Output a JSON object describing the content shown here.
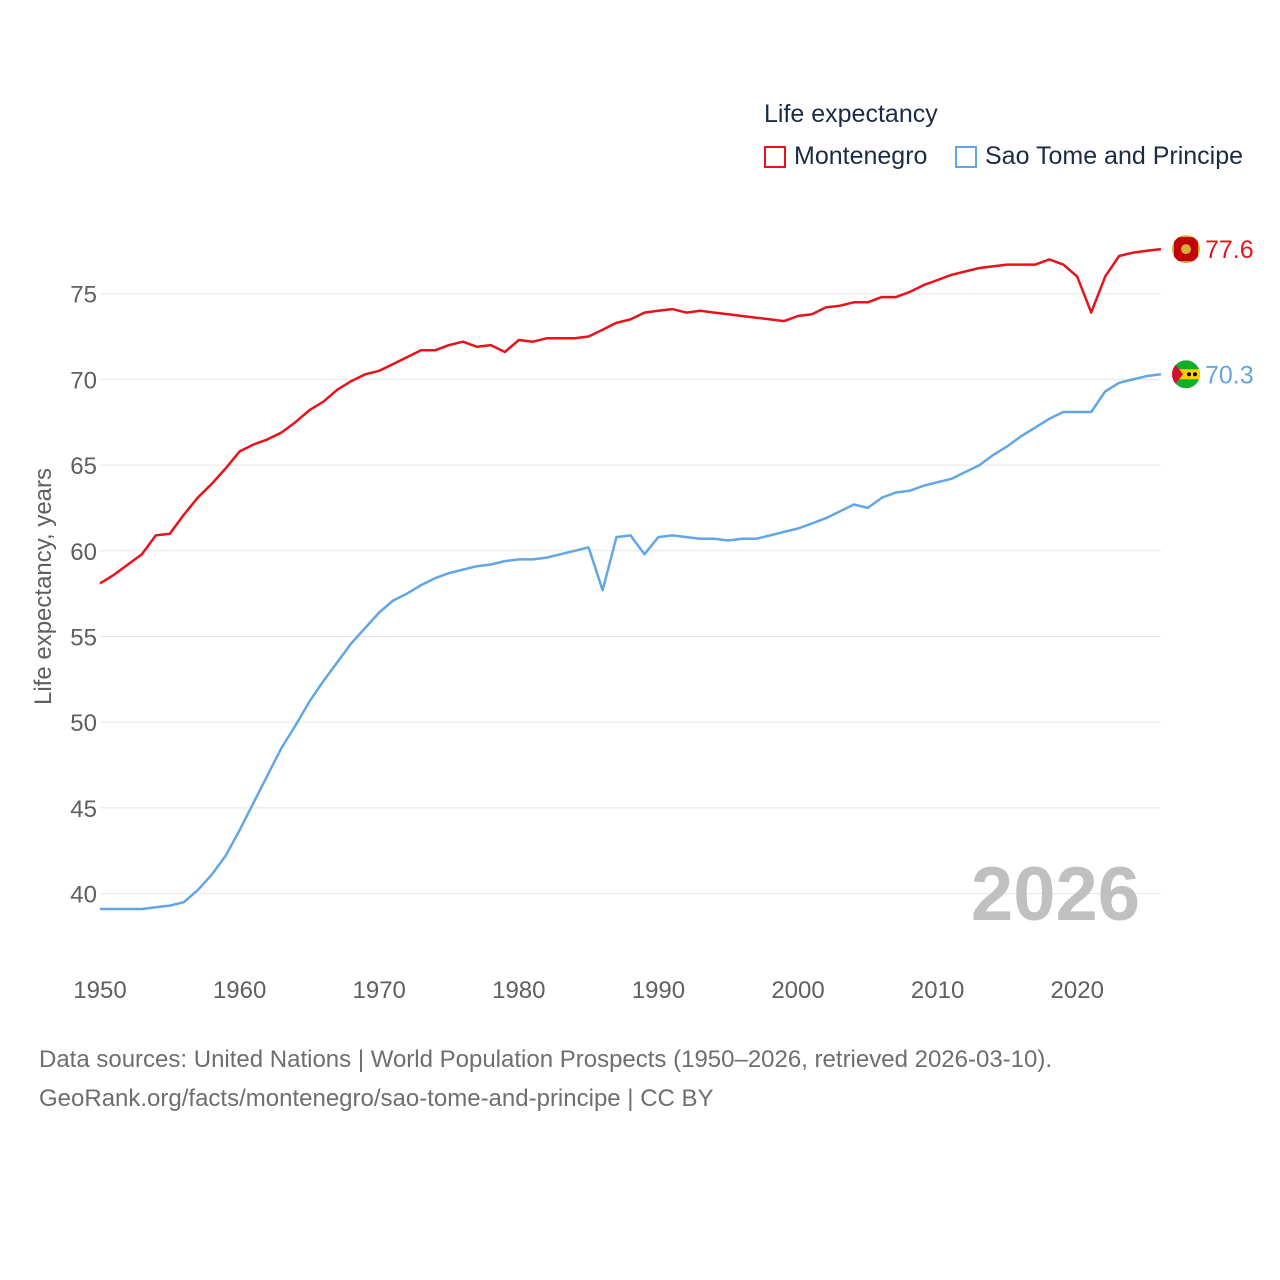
{
  "legend": {
    "title": "Life expectancy",
    "items": [
      {
        "label": "Montenegro",
        "color": "#e8131a"
      },
      {
        "label": "Sao Tome and Principe",
        "color": "#62a6e6"
      }
    ]
  },
  "chart_data": {
    "type": "line",
    "title": "Life expectancy",
    "xlabel": "",
    "ylabel": "Life expectancy, years",
    "xlim": [
      1950,
      2026
    ],
    "ylim": [
      37,
      80
    ],
    "x_ticks": [
      1950,
      1960,
      1970,
      1980,
      1990,
      2000,
      2010,
      2020
    ],
    "y_ticks": [
      40,
      45,
      50,
      55,
      60,
      65,
      70,
      75
    ],
    "year_label": "2026",
    "series": [
      {
        "name": "Montenegro",
        "color": "#e8131a",
        "end_label": "77.6",
        "flag_icon": "montenegro-flag-icon",
        "x": [
          1950,
          1951,
          1952,
          1953,
          1954,
          1955,
          1956,
          1957,
          1958,
          1959,
          1960,
          1961,
          1962,
          1963,
          1964,
          1965,
          1966,
          1967,
          1968,
          1969,
          1970,
          1971,
          1972,
          1973,
          1974,
          1975,
          1976,
          1977,
          1978,
          1979,
          1980,
          1981,
          1982,
          1983,
          1984,
          1985,
          1986,
          1987,
          1988,
          1989,
          1990,
          1991,
          1992,
          1993,
          1994,
          1995,
          1996,
          1997,
          1998,
          1999,
          2000,
          2001,
          2002,
          2003,
          2004,
          2005,
          2006,
          2007,
          2008,
          2009,
          2010,
          2011,
          2012,
          2013,
          2014,
          2015,
          2016,
          2017,
          2018,
          2019,
          2020,
          2021,
          2022,
          2023,
          2024,
          2025,
          2026
        ],
        "values": [
          58.1,
          58.6,
          59.2,
          59.8,
          60.9,
          61.0,
          62.1,
          63.1,
          63.9,
          64.8,
          65.8,
          66.2,
          66.5,
          66.9,
          67.5,
          68.2,
          68.7,
          69.4,
          69.9,
          70.3,
          70.5,
          70.9,
          71.3,
          71.7,
          71.7,
          72.0,
          72.2,
          71.9,
          72.0,
          71.6,
          72.3,
          72.2,
          72.4,
          72.4,
          72.4,
          72.5,
          72.9,
          73.3,
          73.5,
          73.9,
          74.0,
          74.1,
          73.9,
          74.0,
          73.9,
          73.8,
          73.7,
          73.6,
          73.5,
          73.4,
          73.7,
          73.8,
          74.2,
          74.3,
          74.5,
          74.5,
          74.8,
          74.8,
          75.1,
          75.5,
          75.8,
          76.1,
          76.3,
          76.5,
          76.6,
          76.7,
          76.7,
          76.7,
          77.0,
          76.7,
          76.0,
          73.9,
          76.0,
          77.2,
          77.4,
          77.5,
          77.6
        ]
      },
      {
        "name": "Sao Tome and Principe",
        "color": "#62a6e6",
        "end_label": "70.3",
        "flag_icon": "sao-tome-and-principe-flag-icon",
        "x": [
          1950,
          1951,
          1952,
          1953,
          1954,
          1955,
          1956,
          1957,
          1958,
          1959,
          1960,
          1961,
          1962,
          1963,
          1964,
          1965,
          1966,
          1967,
          1968,
          1969,
          1970,
          1971,
          1972,
          1973,
          1974,
          1975,
          1976,
          1977,
          1978,
          1979,
          1980,
          1981,
          1982,
          1983,
          1984,
          1985,
          1986,
          1987,
          1988,
          1989,
          1990,
          1991,
          1992,
          1993,
          1994,
          1995,
          1996,
          1997,
          1998,
          1999,
          2000,
          2001,
          2002,
          2003,
          2004,
          2005,
          2006,
          2007,
          2008,
          2009,
          2010,
          2011,
          2012,
          2013,
          2014,
          2015,
          2016,
          2017,
          2018,
          2019,
          2020,
          2021,
          2022,
          2023,
          2024,
          2025,
          2026
        ],
        "values": [
          39.1,
          39.1,
          39.1,
          39.1,
          39.2,
          39.3,
          39.5,
          40.2,
          41.1,
          42.2,
          43.7,
          45.3,
          46.9,
          48.5,
          49.8,
          51.2,
          52.4,
          53.5,
          54.6,
          55.5,
          56.4,
          57.1,
          57.5,
          58.0,
          58.4,
          58.7,
          58.9,
          59.1,
          59.2,
          59.4,
          59.5,
          59.5,
          59.6,
          59.8,
          60.0,
          60.2,
          57.7,
          60.8,
          60.9,
          59.8,
          60.8,
          60.9,
          60.8,
          60.7,
          60.7,
          60.6,
          60.7,
          60.7,
          60.9,
          61.1,
          61.3,
          61.6,
          61.9,
          62.3,
          62.7,
          62.5,
          63.1,
          63.4,
          63.5,
          63.8,
          64.0,
          64.2,
          64.6,
          65.0,
          65.6,
          66.1,
          66.7,
          67.2,
          67.7,
          68.1,
          68.1,
          68.1,
          69.3,
          69.8,
          70.0,
          70.2,
          70.3
        ]
      }
    ]
  },
  "source": {
    "line1": "Data sources: United Nations | World Population Prospects (1950–2026, retrieved 2026-03-10).",
    "line2": "GeoRank.org/facts/montenegro/sao-tome-and-principe | CC BY"
  }
}
